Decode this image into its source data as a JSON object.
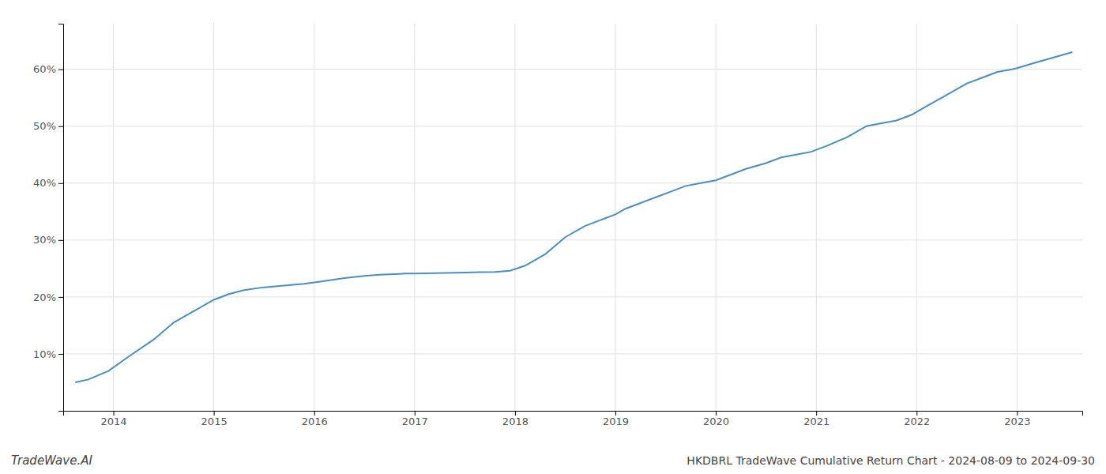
{
  "chart_data": {
    "type": "line",
    "title": "HKDBRL TradeWave Cumulative Return Chart - 2024-08-09 to 2024-09-30",
    "annotations": [
      "TradeWave.AI"
    ],
    "x": [
      2013.62,
      2013.75,
      2013.95,
      2014.15,
      2014.4,
      2014.6,
      2014.8,
      2015.0,
      2015.15,
      2015.3,
      2015.5,
      2015.7,
      2015.9,
      2016.1,
      2016.3,
      2016.5,
      2016.65,
      2016.8,
      2016.9,
      2017.0,
      2017.1,
      2017.3,
      2017.5,
      2017.65,
      2017.8,
      2017.95,
      2018.1,
      2018.3,
      2018.5,
      2018.7,
      2018.85,
      2019.0,
      2019.1,
      2019.25,
      2019.4,
      2019.55,
      2019.7,
      2019.85,
      2020.0,
      2020.15,
      2020.3,
      2020.5,
      2020.65,
      2020.8,
      2020.95,
      2021.1,
      2021.3,
      2021.5,
      2021.65,
      2021.8,
      2021.95,
      2022.1,
      2022.3,
      2022.5,
      2022.65,
      2022.8,
      2022.95,
      2023.0,
      2023.15,
      2023.35,
      2023.55
    ],
    "values": [
      5.0,
      5.5,
      7.0,
      9.5,
      12.5,
      15.5,
      17.5,
      19.5,
      20.5,
      21.2,
      21.7,
      22.0,
      22.3,
      22.8,
      23.3,
      23.7,
      23.9,
      24.0,
      24.1,
      24.1,
      24.15,
      24.2,
      24.3,
      24.35,
      24.4,
      24.6,
      25.5,
      27.5,
      30.5,
      32.5,
      33.5,
      34.5,
      35.5,
      36.5,
      37.5,
      38.5,
      39.5,
      40.0,
      40.5,
      41.5,
      42.5,
      43.5,
      44.5,
      45.0,
      45.5,
      46.5,
      48.0,
      50.0,
      50.5,
      51.0,
      52.0,
      53.5,
      55.5,
      57.5,
      58.5,
      59.5,
      60.0,
      60.2,
      61.0,
      62.0,
      63.0
    ],
    "color": "#4a8fc4",
    "xlim": [
      2013.5,
      2023.65
    ],
    "xticks": [
      2014,
      2015,
      2016,
      2017,
      2018,
      2019,
      2020,
      2021,
      2022,
      2023
    ],
    "ylim": [
      0,
      68
    ],
    "yticks": [
      {
        "value": 10,
        "label": "10%"
      },
      {
        "value": 20,
        "label": "20%"
      },
      {
        "value": 30,
        "label": "30%"
      },
      {
        "value": 40,
        "label": "40%"
      },
      {
        "value": 50,
        "label": "50%"
      },
      {
        "value": 60,
        "label": "60%"
      }
    ],
    "grid": true
  }
}
